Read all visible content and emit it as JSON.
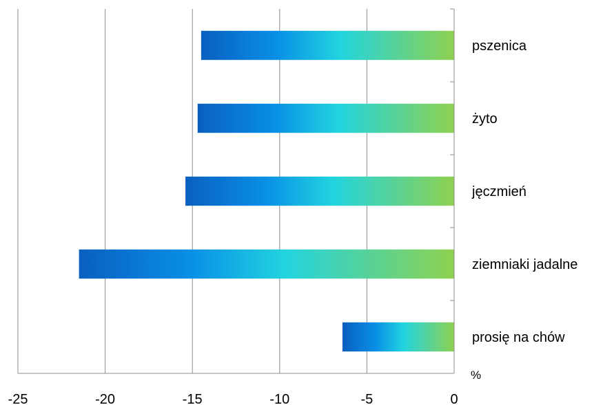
{
  "chart_data": {
    "type": "bar",
    "orientation": "horizontal",
    "categories": [
      "pszenica",
      "żyto",
      "jęczmień",
      "ziemniaki jadalne",
      "prosię na chów"
    ],
    "values": [
      -14.5,
      -14.7,
      -15.4,
      -21.5,
      -6.4
    ],
    "unit": "%",
    "xlim": [
      -25,
      0
    ],
    "x_ticks": [
      -25,
      -20,
      -15,
      -10,
      -5,
      0
    ],
    "x_tick_labels": [
      "-25",
      "-20",
      "-15",
      "-10",
      "-5",
      "0"
    ],
    "grid": true,
    "legend": "none",
    "colors": {
      "gradient_start": "#0a5fc0",
      "gradient_blue": "#0890e6",
      "gradient_cyan": "#22d4df",
      "gradient_end": "#8fd14f",
      "grid": "#8c8c8c"
    }
  }
}
